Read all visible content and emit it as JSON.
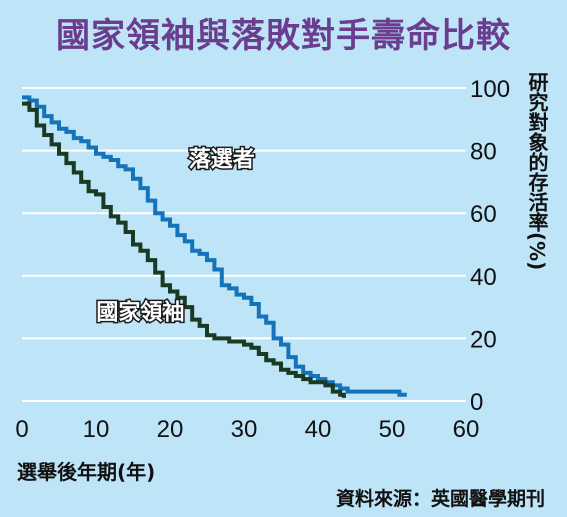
{
  "chart_data": {
    "type": "line",
    "title": "國家領袖與落敗對手壽命比較",
    "xlabel": "選舉後年期(年)",
    "ylabel": "研究對象的存活率(%)",
    "xlim": [
      0,
      60
    ],
    "ylim": [
      0,
      100
    ],
    "x_ticks": [
      "0",
      "10",
      "20",
      "30",
      "40",
      "50",
      "60"
    ],
    "y_ticks": [
      "0",
      "20",
      "40",
      "60",
      "80",
      "100"
    ],
    "grid": true,
    "series": [
      {
        "name": "落選者",
        "color": "#1573b9",
        "points": [
          [
            0,
            97
          ],
          [
            1,
            96
          ],
          [
            2,
            94
          ],
          [
            3,
            91
          ],
          [
            4,
            89
          ],
          [
            5,
            87
          ],
          [
            6,
            86
          ],
          [
            7,
            84
          ],
          [
            8,
            83
          ],
          [
            9,
            81
          ],
          [
            10,
            79
          ],
          [
            11,
            78
          ],
          [
            12,
            77
          ],
          [
            13,
            75
          ],
          [
            14,
            74
          ],
          [
            15,
            71
          ],
          [
            16,
            68
          ],
          [
            17,
            64
          ],
          [
            18,
            60
          ],
          [
            19,
            58
          ],
          [
            20,
            56
          ],
          [
            21,
            53
          ],
          [
            22,
            51
          ],
          [
            23,
            48
          ],
          [
            24,
            47
          ],
          [
            25,
            45
          ],
          [
            26,
            42
          ],
          [
            27,
            37
          ],
          [
            28,
            36
          ],
          [
            29,
            34
          ],
          [
            30,
            33
          ],
          [
            31,
            31
          ],
          [
            32,
            27
          ],
          [
            33,
            25
          ],
          [
            34,
            20
          ],
          [
            35,
            18
          ],
          [
            36,
            14
          ],
          [
            37,
            11
          ],
          [
            38,
            9
          ],
          [
            39,
            8
          ],
          [
            40,
            7
          ],
          [
            41,
            6
          ],
          [
            42,
            5
          ],
          [
            43,
            4
          ],
          [
            44,
            3
          ],
          [
            50,
            3
          ],
          [
            51,
            2
          ],
          [
            52,
            2
          ]
        ]
      },
      {
        "name": "國家領袖",
        "color": "#1a3a24",
        "points": [
          [
            0,
            95
          ],
          [
            1,
            93
          ],
          [
            2,
            88
          ],
          [
            3,
            85
          ],
          [
            4,
            82
          ],
          [
            5,
            79
          ],
          [
            6,
            76
          ],
          [
            7,
            73
          ],
          [
            8,
            70
          ],
          [
            9,
            67
          ],
          [
            10,
            66
          ],
          [
            11,
            62
          ],
          [
            12,
            59
          ],
          [
            13,
            57
          ],
          [
            14,
            54
          ],
          [
            15,
            50
          ],
          [
            16,
            48
          ],
          [
            17,
            45
          ],
          [
            18,
            41
          ],
          [
            19,
            37
          ],
          [
            20,
            35
          ],
          [
            21,
            33
          ],
          [
            22,
            30
          ],
          [
            23,
            26
          ],
          [
            24,
            24
          ],
          [
            25,
            21
          ],
          [
            26,
            20
          ],
          [
            28,
            19
          ],
          [
            30,
            18
          ],
          [
            31,
            17
          ],
          [
            32,
            15
          ],
          [
            33,
            13
          ],
          [
            34,
            12
          ],
          [
            35,
            10
          ],
          [
            36,
            9
          ],
          [
            37,
            8
          ],
          [
            38,
            7
          ],
          [
            39,
            6
          ],
          [
            41,
            5
          ],
          [
            42,
            3
          ],
          [
            43,
            2
          ],
          [
            43.5,
            1
          ]
        ]
      }
    ]
  },
  "source": "資料來源：英國醫學期刊"
}
